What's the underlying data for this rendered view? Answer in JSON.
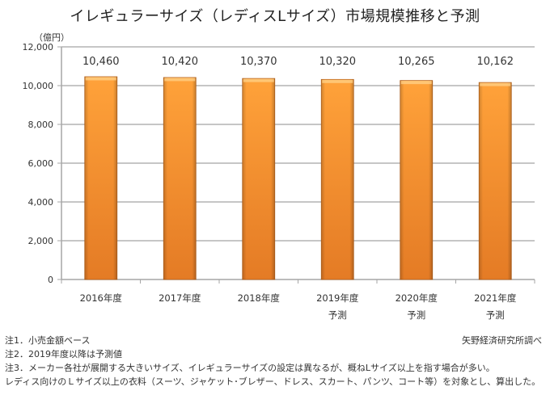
{
  "chart_data": {
    "type": "bar",
    "title": "イレギュラーサイズ（レディスLサイズ）市場規模推移と予測",
    "ylabel": "（億円）",
    "xlabel": "",
    "categories": [
      "2016年度",
      "2017年度",
      "2018年度",
      "2019年度",
      "2020年度",
      "2021年度"
    ],
    "category_sublabels": [
      "",
      "",
      "",
      "予測",
      "予測",
      "予測"
    ],
    "values": [
      10460,
      10420,
      10370,
      10320,
      10265,
      10162
    ],
    "data_labels": [
      "10,460",
      "10,420",
      "10,370",
      "10,320",
      "10,265",
      "10,162"
    ],
    "ylim": [
      0,
      12000
    ],
    "yticks": [
      0,
      2000,
      4000,
      6000,
      8000,
      10000,
      12000
    ],
    "ytick_labels": [
      "0",
      "2,000",
      "4,000",
      "6,000",
      "8,000",
      "10,000",
      "12,000"
    ],
    "grid": true,
    "legend": "none",
    "colors": {
      "bar_top": "#ffa23a",
      "bar_bottom": "#e47b25",
      "bar_edge": "#b9651e",
      "grid": "#8c8c8c",
      "axis": "#a6a6a6"
    }
  },
  "notes": [
    "注1．小売金額ベース",
    "注2．2019年度以降は予測値",
    "注3．メーカー各社が展開する大きいサイズ、イレギュラーサイズの設定は異なるが、概ねLサイズ以上を指す場合が多い。",
    "レディス向けのＬサイズ以上の衣料（スーツ、ジャケット･ブレザー、ドレス、スカート、パンツ、コート等）を対象とし、算出した。"
  ],
  "source": "矢野経済研究所調べ"
}
